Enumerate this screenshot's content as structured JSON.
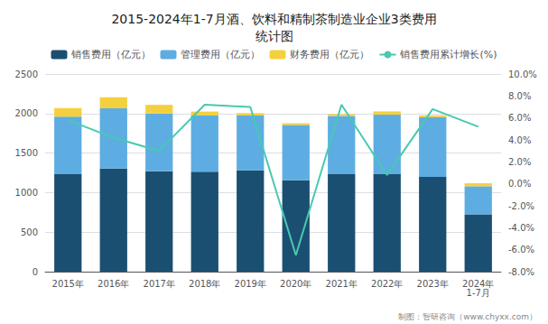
{
  "chart_data": {
    "type": "bar",
    "title": "2015-2024年1-7月酒、饮料和精制茶制造业企业3类费用\n统计图",
    "categories": [
      "2015年",
      "2016年",
      "2017年",
      "2018年",
      "2019年",
      "2020年",
      "2021年",
      "2022年",
      "2023年",
      "2024年\n1-7月"
    ],
    "series": [
      {
        "name": "销售费用（亿元）",
        "type": "bar",
        "color": "#1b4f72",
        "values": [
          1240,
          1305,
          1270,
          1265,
          1280,
          1155,
          1240,
          1240,
          1200,
          725
        ]
      },
      {
        "name": "管理费用（亿元）",
        "type": "bar",
        "color": "#5dade2",
        "values": [
          720,
          760,
          730,
          710,
          695,
          700,
          730,
          745,
          755,
          355
        ]
      },
      {
        "name": "财务费用（亿元）",
        "type": "bar",
        "color": "#f4d03f",
        "values": [
          110,
          140,
          110,
          50,
          30,
          22,
          22,
          42,
          22,
          38
        ]
      },
      {
        "name": "销售费用累计增长(%)",
        "type": "line",
        "color": "#48c9b0",
        "axis": "y2",
        "values": [
          5.8,
          4.2,
          3.0,
          7.2,
          7.0,
          -6.5,
          7.2,
          0.8,
          6.8,
          5.2
        ]
      }
    ],
    "stacked": true,
    "ylim": [
      0,
      2500
    ],
    "yticks": [
      0,
      500,
      1000,
      1500,
      2000,
      2500
    ],
    "y2lim": [
      -8.0,
      10.0
    ],
    "y2ticks": [
      {
        "value": -8.0,
        "label": "-8.0%"
      },
      {
        "value": -6.0,
        "label": "-6.0%"
      },
      {
        "value": -4.0,
        "label": "-4.0%"
      },
      {
        "value": -2.0,
        "label": "-2.0%"
      },
      {
        "value": 0.0,
        "label": "0.0%"
      },
      {
        "value": 2.0,
        "label": "2.0%"
      },
      {
        "value": 4.0,
        "label": "4.0%"
      },
      {
        "value": 6.0,
        "label": "6.0%"
      },
      {
        "value": 8.0,
        "label": "8.0%"
      },
      {
        "value": 10.0,
        "label": "10.0%"
      }
    ],
    "grid": true,
    "legend": "top",
    "annotations": [
      "制图：智研咨询（www.chyxx.com）"
    ]
  }
}
